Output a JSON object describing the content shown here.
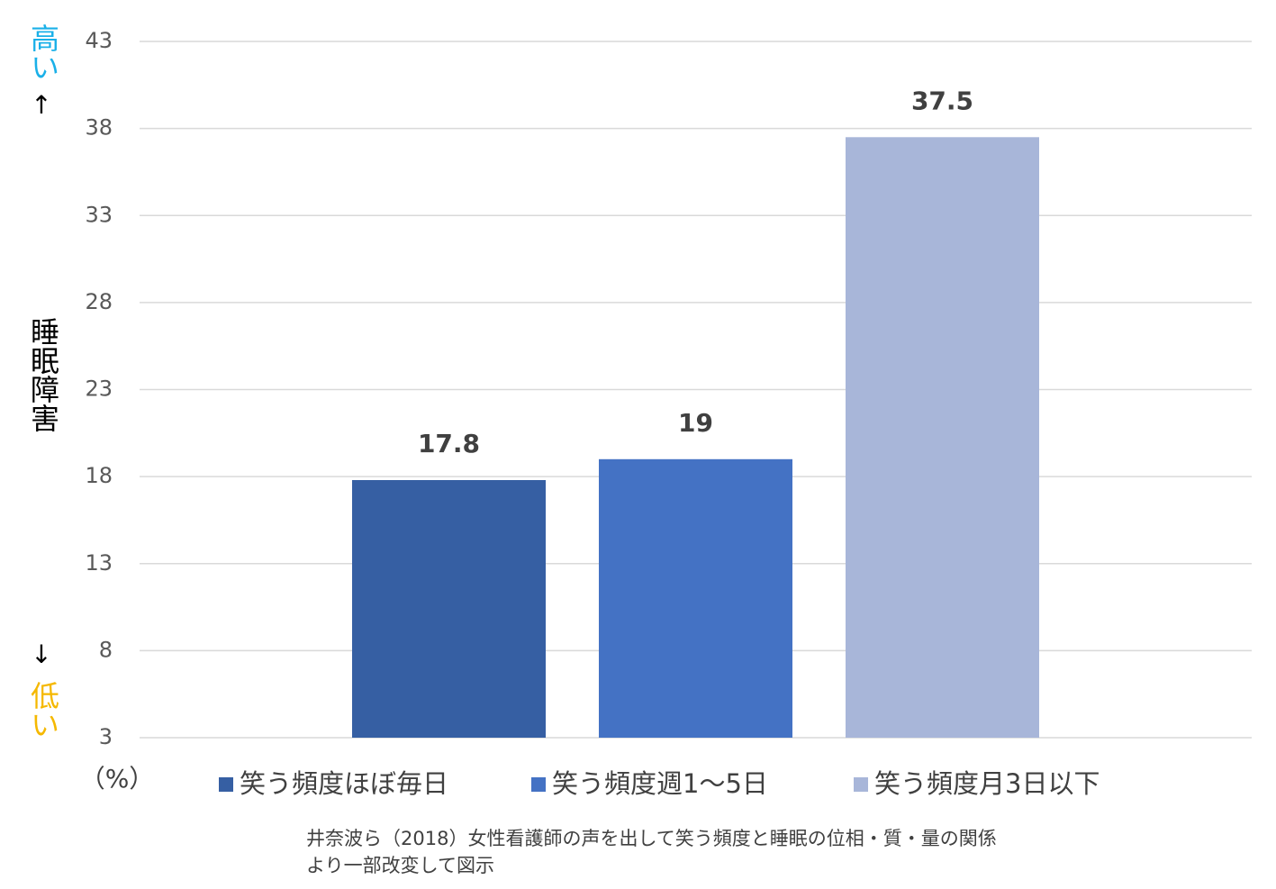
{
  "chart_data": {
    "type": "bar",
    "categories": [
      null
    ],
    "series": [
      {
        "name": "笑う頻度ほぼ毎日",
        "color": "#365fa3",
        "values": [
          17.8
        ]
      },
      {
        "name": "笑う頻度週1～5日",
        "color": "#4472c4",
        "values": [
          19
        ]
      },
      {
        "name": "笑う頻度月3日以下",
        "color": "#a8b6d9",
        "values": [
          37.5
        ]
      }
    ],
    "ylim": [
      3,
      43
    ],
    "yticks": [
      3,
      8,
      13,
      18,
      23,
      28,
      33,
      38,
      43
    ],
    "grid": true,
    "ylabel": "睡眠障害",
    "high_label": "高い",
    "high_arrow": "↑",
    "low_arrow": "↓",
    "low_label": "低い",
    "unit_label": "（%）",
    "legend": "bottom",
    "source": [
      "井奈波ら（2018）女性看護師の声を出して笑う頻度と睡眠の位相・質・量の関係",
      "より一部改変して図示"
    ]
  }
}
